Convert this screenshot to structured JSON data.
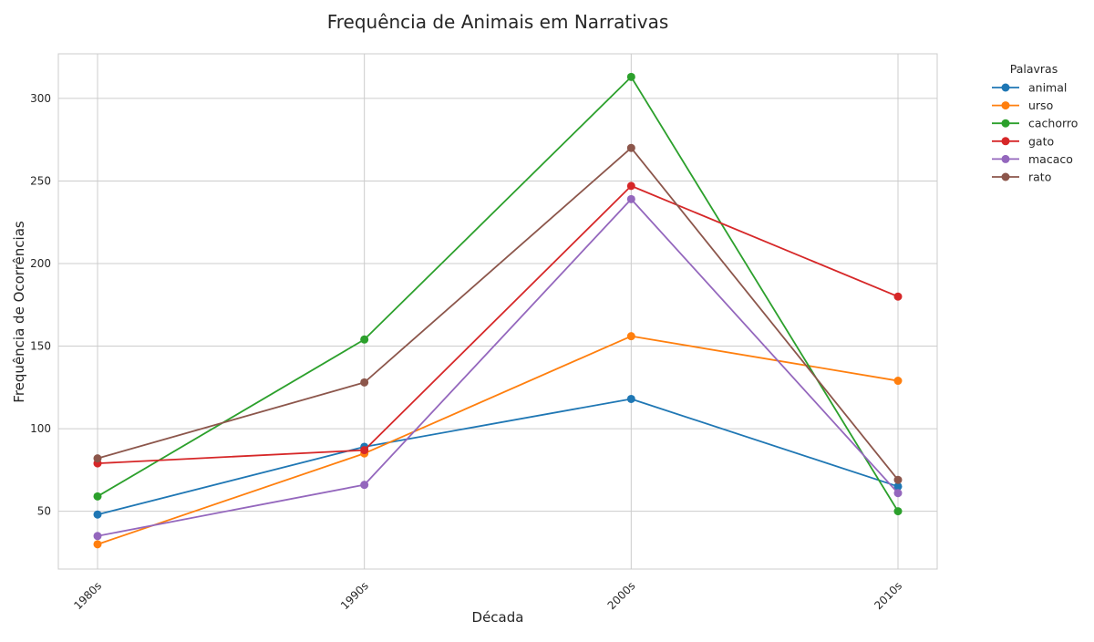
{
  "chart_data": {
    "type": "line",
    "title": "Frequência de Animais em Narrativas",
    "xlabel": "Década",
    "ylabel": "Frequência de Ocorrências",
    "categories": [
      "1980s",
      "1990s",
      "2000s",
      "2010s"
    ],
    "ylim": [
      15,
      327
    ],
    "yticks": [
      50,
      100,
      150,
      200,
      250,
      300
    ],
    "grid": true,
    "legend": {
      "title": "Palavras",
      "placement": "outside-right-top"
    },
    "series": [
      {
        "name": "animal",
        "color": "#1f77b4",
        "values": [
          48,
          89,
          118,
          65
        ]
      },
      {
        "name": "urso",
        "color": "#ff7f0e",
        "values": [
          30,
          85,
          156,
          129
        ]
      },
      {
        "name": "cachorro",
        "color": "#2ca02c",
        "values": [
          59,
          154,
          313,
          50
        ]
      },
      {
        "name": "gato",
        "color": "#d62728",
        "values": [
          79,
          87,
          247,
          180
        ]
      },
      {
        "name": "macaco",
        "color": "#9467bd",
        "values": [
          35,
          66,
          239,
          61
        ]
      },
      {
        "name": "rato",
        "color": "#8c564b",
        "values": [
          82,
          128,
          270,
          69
        ]
      }
    ]
  }
}
